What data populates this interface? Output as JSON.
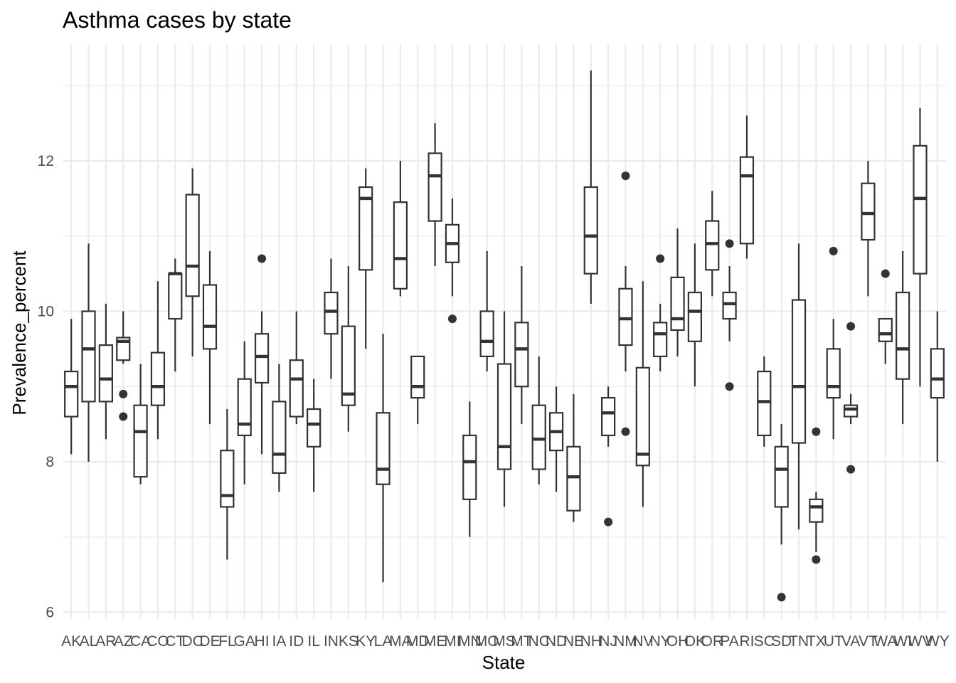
{
  "chart_data": {
    "type": "box",
    "title": "Asthma cases by state",
    "xlabel": "State",
    "ylabel": "Prevalence_percent",
    "ylim": [
      5.9,
      13.35
    ],
    "y_ticks": [
      6,
      8,
      10,
      12
    ],
    "grid": true,
    "categories": [
      "AK",
      "AL",
      "AR",
      "AZ",
      "CA",
      "CO",
      "CT",
      "DC",
      "DE",
      "FL",
      "GA",
      "HI",
      "IA",
      "ID",
      "IL",
      "IN",
      "KS",
      "KY",
      "LA",
      "MA",
      "MD",
      "ME",
      "MI",
      "MN",
      "MO",
      "MS",
      "MT",
      "NC",
      "ND",
      "NE",
      "NH",
      "NJ",
      "NM",
      "NV",
      "NY",
      "OH",
      "OK",
      "OR",
      "PA",
      "RI",
      "SC",
      "SD",
      "TN",
      "TX",
      "UT",
      "VA",
      "VT",
      "WA",
      "WI",
      "WV",
      "WY"
    ],
    "boxes": [
      {
        "state": "AK",
        "whisker_low": 8.1,
        "q1": 8.6,
        "median": 9.0,
        "q3": 9.2,
        "whisker_high": 9.9,
        "outliers": []
      },
      {
        "state": "AL",
        "whisker_low": 8.0,
        "q1": 8.8,
        "median": 9.5,
        "q3": 10.0,
        "whisker_high": 10.9,
        "outliers": []
      },
      {
        "state": "AR",
        "whisker_low": 8.3,
        "q1": 8.8,
        "median": 9.1,
        "q3": 9.55,
        "whisker_high": 10.1,
        "outliers": []
      },
      {
        "state": "AZ",
        "whisker_low": 9.3,
        "q1": 9.35,
        "median": 9.6,
        "q3": 9.65,
        "whisker_high": 10.0,
        "outliers": [
          8.9,
          8.6
        ]
      },
      {
        "state": "CA",
        "whisker_low": 7.7,
        "q1": 7.8,
        "median": 8.4,
        "q3": 8.75,
        "whisker_high": 9.3,
        "outliers": []
      },
      {
        "state": "CO",
        "whisker_low": 8.3,
        "q1": 8.75,
        "median": 9.0,
        "q3": 9.45,
        "whisker_high": 10.4,
        "outliers": []
      },
      {
        "state": "CT",
        "whisker_low": 9.2,
        "q1": 9.9,
        "median": 10.5,
        "q3": 10.5,
        "whisker_high": 10.7,
        "outliers": []
      },
      {
        "state": "DC",
        "whisker_low": 9.4,
        "q1": 10.2,
        "median": 10.6,
        "q3": 11.55,
        "whisker_high": 11.9,
        "outliers": []
      },
      {
        "state": "DE",
        "whisker_low": 8.5,
        "q1": 9.5,
        "median": 9.8,
        "q3": 10.35,
        "whisker_high": 10.8,
        "outliers": []
      },
      {
        "state": "FL",
        "whisker_low": 6.7,
        "q1": 7.4,
        "median": 7.55,
        "q3": 8.15,
        "whisker_high": 8.7,
        "outliers": []
      },
      {
        "state": "GA",
        "whisker_low": 7.7,
        "q1": 8.35,
        "median": 8.5,
        "q3": 9.1,
        "whisker_high": 9.6,
        "outliers": []
      },
      {
        "state": "HI",
        "whisker_low": 8.1,
        "q1": 9.05,
        "median": 9.4,
        "q3": 9.7,
        "whisker_high": 10.0,
        "outliers": [
          10.7
        ]
      },
      {
        "state": "IA",
        "whisker_low": 7.6,
        "q1": 7.85,
        "median": 8.1,
        "q3": 8.8,
        "whisker_high": 9.3,
        "outliers": []
      },
      {
        "state": "ID",
        "whisker_low": 8.5,
        "q1": 8.6,
        "median": 9.1,
        "q3": 9.35,
        "whisker_high": 10.0,
        "outliers": []
      },
      {
        "state": "IL",
        "whisker_low": 7.6,
        "q1": 8.2,
        "median": 8.5,
        "q3": 8.7,
        "whisker_high": 9.1,
        "outliers": []
      },
      {
        "state": "IN",
        "whisker_low": 9.1,
        "q1": 9.7,
        "median": 10.0,
        "q3": 10.25,
        "whisker_high": 10.7,
        "outliers": []
      },
      {
        "state": "KS",
        "whisker_low": 8.4,
        "q1": 8.75,
        "median": 8.9,
        "q3": 9.8,
        "whisker_high": 10.6,
        "outliers": []
      },
      {
        "state": "KY",
        "whisker_low": 9.5,
        "q1": 10.55,
        "median": 11.5,
        "q3": 11.65,
        "whisker_high": 11.9,
        "outliers": []
      },
      {
        "state": "LA",
        "whisker_low": 6.4,
        "q1": 7.7,
        "median": 7.9,
        "q3": 8.65,
        "whisker_high": 9.7,
        "outliers": []
      },
      {
        "state": "MA",
        "whisker_low": 10.2,
        "q1": 10.3,
        "median": 10.7,
        "q3": 11.45,
        "whisker_high": 12.0,
        "outliers": []
      },
      {
        "state": "MD",
        "whisker_low": 8.5,
        "q1": 8.85,
        "median": 9.0,
        "q3": 9.4,
        "whisker_high": 9.4,
        "outliers": []
      },
      {
        "state": "ME",
        "whisker_low": 10.6,
        "q1": 11.2,
        "median": 11.8,
        "q3": 12.1,
        "whisker_high": 12.5,
        "outliers": []
      },
      {
        "state": "MI",
        "whisker_low": 10.2,
        "q1": 10.65,
        "median": 10.9,
        "q3": 11.15,
        "whisker_high": 11.5,
        "outliers": [
          9.9
        ]
      },
      {
        "state": "MN",
        "whisker_low": 7.0,
        "q1": 7.5,
        "median": 8.0,
        "q3": 8.35,
        "whisker_high": 8.8,
        "outliers": []
      },
      {
        "state": "MO",
        "whisker_low": 9.2,
        "q1": 9.4,
        "median": 9.6,
        "q3": 10.0,
        "whisker_high": 10.8,
        "outliers": []
      },
      {
        "state": "MS",
        "whisker_low": 7.4,
        "q1": 7.9,
        "median": 8.2,
        "q3": 9.3,
        "whisker_high": 10.0,
        "outliers": []
      },
      {
        "state": "MT",
        "whisker_low": 8.5,
        "q1": 9.0,
        "median": 9.5,
        "q3": 9.85,
        "whisker_high": 10.6,
        "outliers": []
      },
      {
        "state": "NC",
        "whisker_low": 7.7,
        "q1": 7.9,
        "median": 8.3,
        "q3": 8.75,
        "whisker_high": 9.4,
        "outliers": []
      },
      {
        "state": "ND",
        "whisker_low": 7.6,
        "q1": 8.15,
        "median": 8.4,
        "q3": 8.65,
        "whisker_high": 9.0,
        "outliers": []
      },
      {
        "state": "NE",
        "whisker_low": 7.2,
        "q1": 7.35,
        "median": 7.8,
        "q3": 8.2,
        "whisker_high": 8.9,
        "outliers": []
      },
      {
        "state": "NH",
        "whisker_low": 10.1,
        "q1": 10.5,
        "median": 11.0,
        "q3": 11.65,
        "whisker_high": 13.2,
        "outliers": []
      },
      {
        "state": "NJ",
        "whisker_low": 8.2,
        "q1": 8.35,
        "median": 8.65,
        "q3": 8.85,
        "whisker_high": 9.0,
        "outliers": [
          7.2
        ]
      },
      {
        "state": "NM",
        "whisker_low": 9.2,
        "q1": 9.55,
        "median": 9.9,
        "q3": 10.3,
        "whisker_high": 10.6,
        "outliers": [
          11.8,
          8.4
        ]
      },
      {
        "state": "NV",
        "whisker_low": 7.4,
        "q1": 7.95,
        "median": 8.1,
        "q3": 9.25,
        "whisker_high": 10.4,
        "outliers": []
      },
      {
        "state": "NY",
        "whisker_low": 9.2,
        "q1": 9.4,
        "median": 9.7,
        "q3": 9.85,
        "whisker_high": 10.1,
        "outliers": [
          10.7
        ]
      },
      {
        "state": "OH",
        "whisker_low": 9.4,
        "q1": 9.75,
        "median": 9.9,
        "q3": 10.45,
        "whisker_high": 11.1,
        "outliers": []
      },
      {
        "state": "OK",
        "whisker_low": 9.0,
        "q1": 9.6,
        "median": 10.0,
        "q3": 10.25,
        "whisker_high": 10.9,
        "outliers": []
      },
      {
        "state": "OR",
        "whisker_low": 10.2,
        "q1": 10.55,
        "median": 10.9,
        "q3": 11.2,
        "whisker_high": 11.6,
        "outliers": []
      },
      {
        "state": "PA",
        "whisker_low": 9.6,
        "q1": 9.9,
        "median": 10.1,
        "q3": 10.25,
        "whisker_high": 10.6,
        "outliers": [
          10.9,
          9.0
        ]
      },
      {
        "state": "RI",
        "whisker_low": 10.7,
        "q1": 10.9,
        "median": 11.8,
        "q3": 12.05,
        "whisker_high": 12.6,
        "outliers": []
      },
      {
        "state": "SC",
        "whisker_low": 8.2,
        "q1": 8.35,
        "median": 8.8,
        "q3": 9.2,
        "whisker_high": 9.4,
        "outliers": []
      },
      {
        "state": "SD",
        "whisker_low": 6.9,
        "q1": 7.4,
        "median": 7.9,
        "q3": 8.2,
        "whisker_high": 8.5,
        "outliers": [
          6.2
        ]
      },
      {
        "state": "TN",
        "whisker_low": 7.1,
        "q1": 8.25,
        "median": 9.0,
        "q3": 10.15,
        "whisker_high": 10.9,
        "outliers": []
      },
      {
        "state": "TX",
        "whisker_low": 6.8,
        "q1": 7.2,
        "median": 7.4,
        "q3": 7.5,
        "whisker_high": 7.6,
        "outliers": [
          8.4,
          6.7
        ]
      },
      {
        "state": "UT",
        "whisker_low": 8.3,
        "q1": 8.85,
        "median": 9.0,
        "q3": 9.5,
        "whisker_high": 9.9,
        "outliers": [
          10.8
        ]
      },
      {
        "state": "VA",
        "whisker_low": 8.5,
        "q1": 8.6,
        "median": 8.7,
        "q3": 8.75,
        "whisker_high": 8.9,
        "outliers": [
          9.8,
          7.9
        ]
      },
      {
        "state": "VT",
        "whisker_low": 10.2,
        "q1": 10.95,
        "median": 11.3,
        "q3": 11.7,
        "whisker_high": 12.0,
        "outliers": []
      },
      {
        "state": "WA",
        "whisker_low": 9.3,
        "q1": 9.6,
        "median": 9.7,
        "q3": 9.9,
        "whisker_high": 9.9,
        "outliers": [
          10.5
        ]
      },
      {
        "state": "WI",
        "whisker_low": 8.5,
        "q1": 9.1,
        "median": 9.5,
        "q3": 10.25,
        "whisker_high": 10.8,
        "outliers": []
      },
      {
        "state": "WV",
        "whisker_low": 9.0,
        "q1": 10.5,
        "median": 11.5,
        "q3": 12.2,
        "whisker_high": 12.7,
        "outliers": []
      },
      {
        "state": "WY",
        "whisker_low": 8.0,
        "q1": 8.85,
        "median": 9.1,
        "q3": 9.5,
        "whisker_high": 10.0,
        "outliers": []
      }
    ],
    "colors": {
      "box_stroke": "#333333",
      "grid": "#ebebeb",
      "background": "#ffffff"
    }
  }
}
